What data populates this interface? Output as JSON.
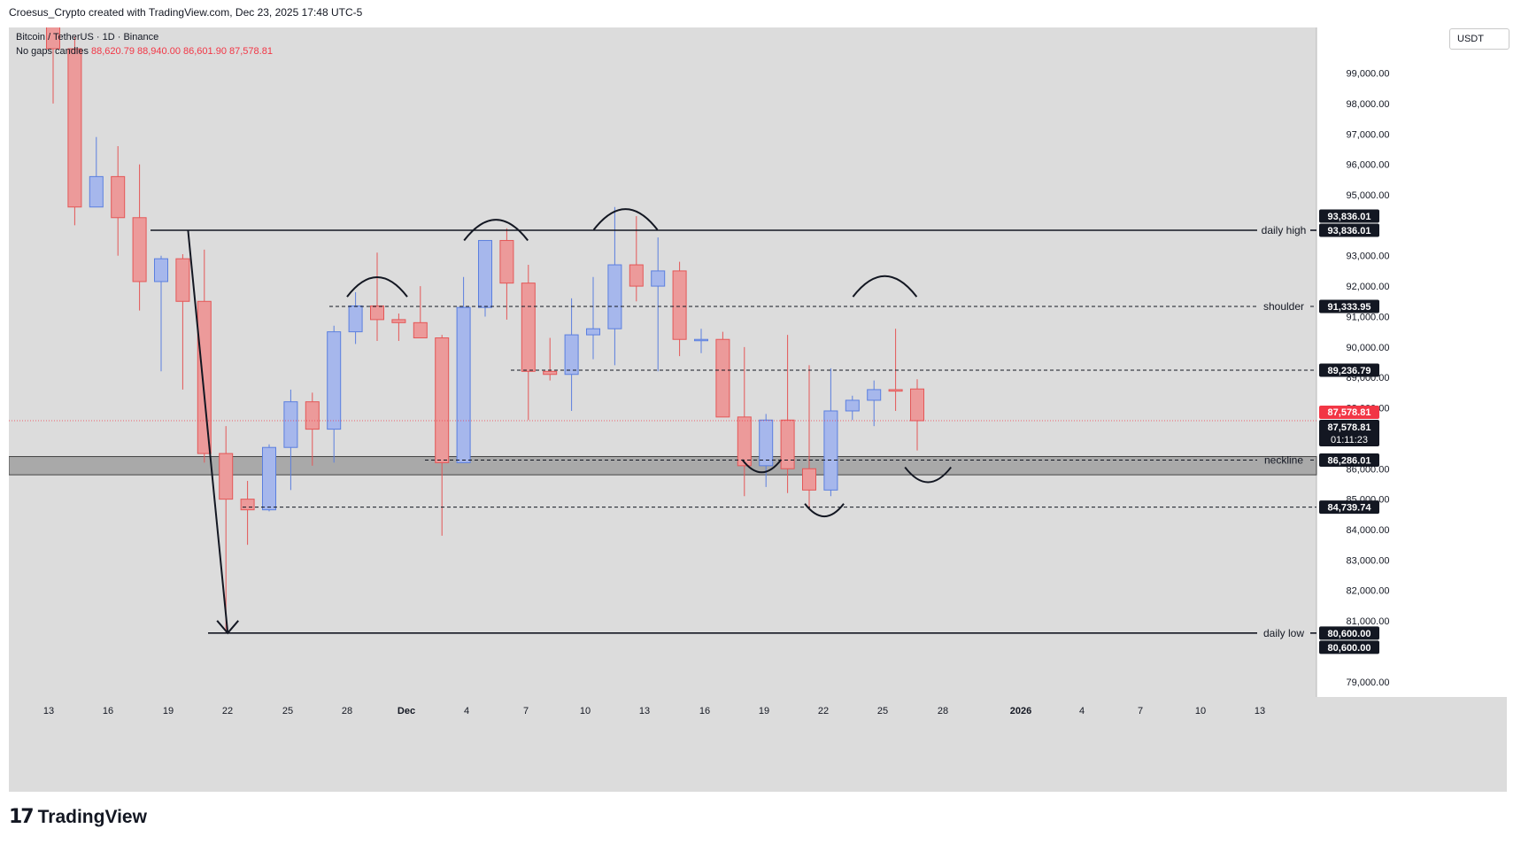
{
  "header": {
    "attribution": "Croesus_Crypto created with TradingView.com, Dec 23, 2025 17:48 UTC-5"
  },
  "legend": {
    "symbol": "Bitcoin / TetherUS · 1D · Binance",
    "candle_type": "No gaps candles",
    "open": "88,620.79",
    "high": "88,940.00",
    "low": "86,601.90",
    "close": "87,578.81"
  },
  "currency_button": "USDT",
  "branding": {
    "logo_mark": "17",
    "logo_text": "TradingView"
  },
  "colors": {
    "up": "#5b7fdf",
    "up_fill": "#a6b7ec",
    "down": "#e45757",
    "down_fill": "#ec9a9a",
    "plot_bg": "#dcdcdc",
    "zone": "#a9a9a9"
  },
  "chart_data": {
    "type": "candlestick",
    "x_ticks": [
      "13",
      "16",
      "19",
      "22",
      "25",
      "28",
      "Dec",
      "4",
      "7",
      "10",
      "13",
      "16",
      "19",
      "22",
      "25",
      "28",
      "2026",
      "4",
      "7",
      "10",
      "13"
    ],
    "y_ticks": [
      "99,000.00",
      "98,000.00",
      "97,000.00",
      "96,000.00",
      "95,000.00",
      "93,000.00",
      "92,000.00",
      "91,000.00",
      "90,000.00",
      "89,000.00",
      "88,000.00",
      "86,000.00",
      "85,000.00",
      "84,000.00",
      "83,000.00",
      "82,000.00",
      "81,000.00",
      "79,000.00"
    ],
    "y_tick_values": [
      99000,
      98000,
      97000,
      96000,
      95000,
      93000,
      92000,
      91000,
      90000,
      89000,
      88000,
      86000,
      85000,
      84000,
      83000,
      82000,
      81000,
      79000
    ],
    "ylim": [
      78500,
      100500
    ],
    "candles": [
      {
        "date": "Nov 12",
        "o": 101500,
        "h": 102000,
        "l": 98000,
        "c": 99800
      },
      {
        "date": "Nov 13",
        "o": 99800,
        "h": 100200,
        "l": 94000,
        "c": 94600
      },
      {
        "date": "Nov 14",
        "o": 94600,
        "h": 96900,
        "l": 94600,
        "c": 95600
      },
      {
        "date": "Nov 15",
        "o": 95600,
        "h": 96600,
        "l": 93000,
        "c": 94250
      },
      {
        "date": "Nov 16",
        "o": 94250,
        "h": 96000,
        "l": 91200,
        "c": 92150
      },
      {
        "date": "Nov 17",
        "o": 92150,
        "h": 93000,
        "l": 89200,
        "c": 92900
      },
      {
        "date": "Nov 18",
        "o": 92900,
        "h": 93050,
        "l": 88600,
        "c": 91500
      },
      {
        "date": "Nov 19",
        "o": 91500,
        "h": 93200,
        "l": 86200,
        "c": 86500
      },
      {
        "date": "Nov 20",
        "o": 86500,
        "h": 87400,
        "l": 80600,
        "c": 85000
      },
      {
        "date": "Nov 21",
        "o": 85000,
        "h": 85600,
        "l": 83500,
        "c": 84650
      },
      {
        "date": "Nov 22",
        "o": 84650,
        "h": 86800,
        "l": 84600,
        "c": 86700
      },
      {
        "date": "Nov 23",
        "o": 86700,
        "h": 88600,
        "l": 85300,
        "c": 88200
      },
      {
        "date": "Nov 24",
        "o": 88200,
        "h": 88500,
        "l": 86100,
        "c": 87300
      },
      {
        "date": "Nov 25",
        "o": 87300,
        "h": 90700,
        "l": 86200,
        "c": 90500
      },
      {
        "date": "Nov 26",
        "o": 90500,
        "h": 91800,
        "l": 90100,
        "c": 91350
      },
      {
        "date": "Nov 27",
        "o": 91350,
        "h": 93100,
        "l": 90200,
        "c": 90900
      },
      {
        "date": "Nov 28",
        "o": 90900,
        "h": 91100,
        "l": 90200,
        "c": 90800
      },
      {
        "date": "Nov 29",
        "o": 90800,
        "h": 92000,
        "l": 90300,
        "c": 90300
      },
      {
        "date": "Nov 30",
        "o": 90300,
        "h": 90400,
        "l": 83800,
        "c": 86200
      },
      {
        "date": "Dec 1",
        "o": 86200,
        "h": 92300,
        "l": 86200,
        "c": 91300
      },
      {
        "date": "Dec 2",
        "o": 91300,
        "h": 93500,
        "l": 91000,
        "c": 93500
      },
      {
        "date": "Dec 3",
        "o": 93500,
        "h": 93900,
        "l": 90900,
        "c": 92100
      },
      {
        "date": "Dec 4",
        "o": 92100,
        "h": 92700,
        "l": 87600,
        "c": 89200
      },
      {
        "date": "Dec 5",
        "o": 89200,
        "h": 90300,
        "l": 88900,
        "c": 89100
      },
      {
        "date": "Dec 6",
        "o": 89100,
        "h": 91600,
        "l": 87900,
        "c": 90400
      },
      {
        "date": "Dec 7",
        "o": 90400,
        "h": 92300,
        "l": 89600,
        "c": 90600
      },
      {
        "date": "Dec 8",
        "o": 90600,
        "h": 94600,
        "l": 89400,
        "c": 92700
      },
      {
        "date": "Dec 9",
        "o": 92700,
        "h": 94300,
        "l": 91500,
        "c": 92000
      },
      {
        "date": "Dec 10",
        "o": 92000,
        "h": 93600,
        "l": 89200,
        "c": 92500
      },
      {
        "date": "Dec 11",
        "o": 92500,
        "h": 92800,
        "l": 89700,
        "c": 90250
      },
      {
        "date": "Dec 12",
        "o": 90250,
        "h": 90600,
        "l": 89800,
        "c": 90250
      },
      {
        "date": "Dec 13",
        "o": 90250,
        "h": 90500,
        "l": 87700,
        "c": 87700
      },
      {
        "date": "Dec 14",
        "o": 87700,
        "h": 90000,
        "l": 85100,
        "c": 86100
      },
      {
        "date": "Dec 15",
        "o": 86100,
        "h": 87800,
        "l": 85400,
        "c": 87600
      },
      {
        "date": "Dec 16",
        "o": 87600,
        "h": 90400,
        "l": 85200,
        "c": 86000
      },
      {
        "date": "Dec 17",
        "o": 86000,
        "h": 89400,
        "l": 84700,
        "c": 85300
      },
      {
        "date": "Dec 18",
        "o": 85300,
        "h": 89300,
        "l": 85100,
        "c": 87900
      },
      {
        "date": "Dec 19",
        "o": 87900,
        "h": 88400,
        "l": 87600,
        "c": 88250
      },
      {
        "date": "Dec 20",
        "o": 88250,
        "h": 88900,
        "l": 87400,
        "c": 88600
      },
      {
        "date": "Dec 21",
        "o": 88600,
        "h": 90600,
        "l": 87900,
        "c": 88550
      },
      {
        "date": "Dec 22",
        "o": 88620.79,
        "h": 88940,
        "l": 86601.9,
        "c": 87578.81
      }
    ],
    "levels": [
      {
        "label": "daily high",
        "value": 93836.01,
        "price": "93,836.01",
        "style": "solid"
      },
      {
        "label": "shoulder",
        "value": 91333.95,
        "price": "91,333.95",
        "style": "dashed"
      },
      {
        "label": "",
        "value": 89236.79,
        "price": "89,236.79",
        "style": "dashed"
      },
      {
        "label": "neckline",
        "value": 86286.01,
        "price": "86,286.01",
        "style": "dashed"
      },
      {
        "label": "",
        "value": 84739.74,
        "price": "84,739.74",
        "style": "dashed"
      },
      {
        "label": "daily low",
        "value": 80600.0,
        "price": "80,600.00",
        "style": "solid"
      }
    ],
    "neckline_zone": [
      85800,
      86400
    ],
    "last_price": {
      "value": 87578.81,
      "price": "87,578.81",
      "countdown": "01:11:23"
    }
  }
}
